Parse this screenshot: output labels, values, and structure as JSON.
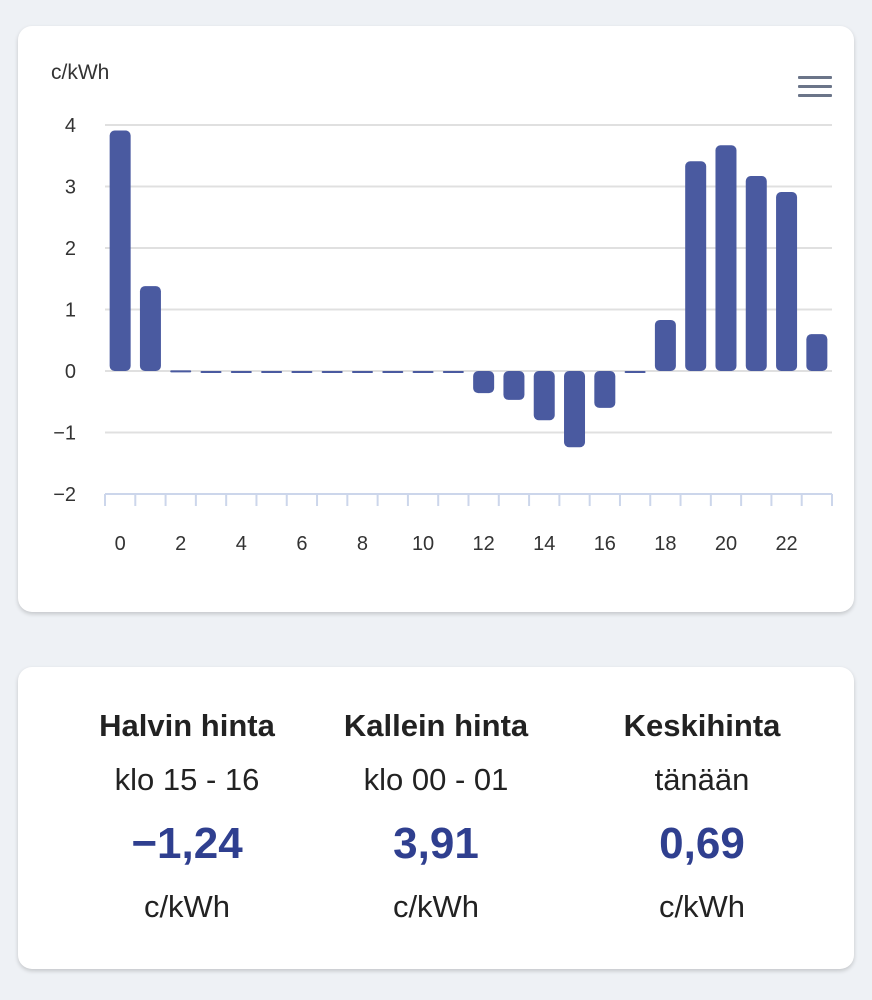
{
  "chart_data": {
    "type": "bar",
    "ylabel": "c/kWh",
    "x": [
      0,
      1,
      2,
      3,
      4,
      5,
      6,
      7,
      8,
      9,
      10,
      11,
      12,
      13,
      14,
      15,
      16,
      17,
      18,
      19,
      20,
      21,
      22,
      23
    ],
    "values": [
      3.91,
      1.38,
      0.01,
      0,
      0,
      0,
      0,
      0,
      0,
      0,
      0,
      -0.01,
      -0.36,
      -0.47,
      -0.8,
      -1.24,
      -0.6,
      -0.01,
      0.83,
      3.41,
      3.67,
      3.17,
      2.91,
      0.6
    ],
    "ylim": [
      -2,
      4
    ],
    "yticks": [
      4,
      3,
      2,
      1,
      0,
      -1,
      -2
    ],
    "ytick_labels": [
      "4",
      "3",
      "2",
      "1",
      "0",
      "−1",
      "−2"
    ],
    "xticks": [
      0,
      2,
      4,
      6,
      8,
      10,
      12,
      14,
      16,
      18,
      20,
      22
    ],
    "xtick_labels": [
      "0",
      "2",
      "4",
      "6",
      "8",
      "10",
      "12",
      "14",
      "16",
      "18",
      "20",
      "22"
    ],
    "grid": true,
    "bar_color": "#4a5aa0"
  },
  "menu_icon": "hamburger-menu-icon",
  "stats": [
    {
      "title": "Halvin hinta",
      "subtitle": "klo 15 - 16",
      "value": "−1,24",
      "unit": "c/kWh"
    },
    {
      "title": "Kallein hinta",
      "subtitle": "klo 00 - 01",
      "value": "3,91",
      "unit": "c/kWh"
    },
    {
      "title": "Keskihinta",
      "subtitle": "tänään",
      "value": "0,69",
      "unit": "c/kWh"
    }
  ],
  "accent_color": "#2f3f8f"
}
